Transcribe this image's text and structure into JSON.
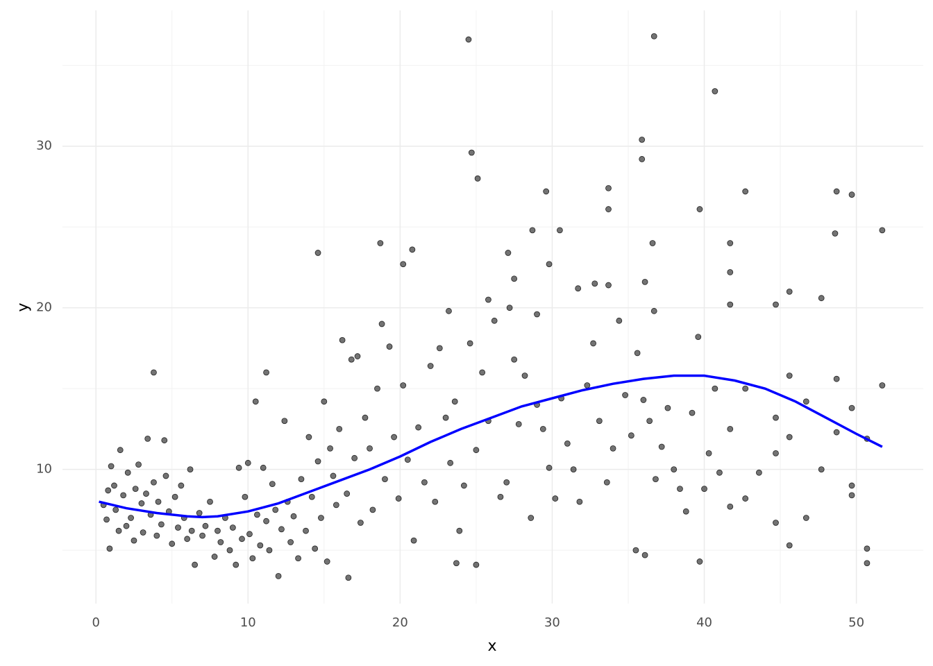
{
  "chart_data": {
    "type": "scatter",
    "x_label": "x",
    "y_label": "y",
    "xlim": [
      -2.2,
      54.4
    ],
    "ylim": [
      1.7,
      38.4
    ],
    "xticks": [
      0,
      10,
      20,
      30,
      40,
      50
    ],
    "yticks": [
      10,
      20,
      30
    ],
    "minor_xticks": [
      5,
      15,
      25,
      35,
      45
    ],
    "minor_yticks": [
      5,
      15,
      25,
      35
    ],
    "grid": true,
    "point_color": "#000000",
    "point_opacity": 0.55,
    "points": [
      {
        "x": 24.5,
        "y": 36.6
      },
      {
        "x": 36.7,
        "y": 36.8
      },
      {
        "x": 40.7,
        "y": 33.4
      },
      {
        "x": 24.7,
        "y": 29.6
      },
      {
        "x": 25.1,
        "y": 28.0
      },
      {
        "x": 35.9,
        "y": 30.4
      },
      {
        "x": 35.9,
        "y": 29.2
      },
      {
        "x": 29.6,
        "y": 27.2
      },
      {
        "x": 33.7,
        "y": 27.4
      },
      {
        "x": 33.7,
        "y": 26.1
      },
      {
        "x": 42.7,
        "y": 27.2
      },
      {
        "x": 48.7,
        "y": 27.2
      },
      {
        "x": 49.7,
        "y": 27.0
      },
      {
        "x": 39.7,
        "y": 26.1
      },
      {
        "x": 51.7,
        "y": 24.8
      },
      {
        "x": 48.6,
        "y": 24.6
      },
      {
        "x": 28.7,
        "y": 24.8
      },
      {
        "x": 30.5,
        "y": 24.8
      },
      {
        "x": 18.7,
        "y": 24.0
      },
      {
        "x": 20.8,
        "y": 23.6
      },
      {
        "x": 20.2,
        "y": 22.7
      },
      {
        "x": 14.6,
        "y": 23.4
      },
      {
        "x": 27.1,
        "y": 23.4
      },
      {
        "x": 29.8,
        "y": 22.7
      },
      {
        "x": 36.6,
        "y": 24.0
      },
      {
        "x": 41.7,
        "y": 24.0
      },
      {
        "x": 41.7,
        "y": 22.2
      },
      {
        "x": 36.1,
        "y": 21.6
      },
      {
        "x": 32.8,
        "y": 21.5
      },
      {
        "x": 33.7,
        "y": 21.4
      },
      {
        "x": 27.5,
        "y": 21.8
      },
      {
        "x": 31.7,
        "y": 21.2
      },
      {
        "x": 45.6,
        "y": 21.0
      },
      {
        "x": 47.7,
        "y": 20.6
      },
      {
        "x": 25.8,
        "y": 20.5
      },
      {
        "x": 44.7,
        "y": 20.2
      },
      {
        "x": 41.7,
        "y": 20.2
      },
      {
        "x": 23.2,
        "y": 19.8
      },
      {
        "x": 36.7,
        "y": 19.8
      },
      {
        "x": 29.0,
        "y": 19.6
      },
      {
        "x": 3.8,
        "y": 16.0
      },
      {
        "x": 11.2,
        "y": 16.0
      },
      {
        "x": 51.7,
        "y": 15.2
      },
      {
        "x": 50.7,
        "y": 5.1
      },
      {
        "x": 50.7,
        "y": 4.2
      },
      {
        "x": 16.6,
        "y": 3.3
      },
      {
        "x": 25.0,
        "y": 4.1
      },
      {
        "x": 23.7,
        "y": 4.2
      },
      {
        "x": 39.7,
        "y": 4.3
      },
      {
        "x": 35.5,
        "y": 5.0
      },
      {
        "x": 36.1,
        "y": 4.7
      },
      {
        "x": 0.5,
        "y": 7.8
      },
      {
        "x": 0.7,
        "y": 6.9
      },
      {
        "x": 0.8,
        "y": 8.7
      },
      {
        "x": 0.9,
        "y": 5.1
      },
      {
        "x": 1.0,
        "y": 10.2
      },
      {
        "x": 1.2,
        "y": 9.0
      },
      {
        "x": 1.3,
        "y": 7.5
      },
      {
        "x": 1.5,
        "y": 6.2
      },
      {
        "x": 1.6,
        "y": 11.2
      },
      {
        "x": 1.8,
        "y": 8.4
      },
      {
        "x": 2.0,
        "y": 6.5
      },
      {
        "x": 2.1,
        "y": 9.8
      },
      {
        "x": 2.3,
        "y": 7.0
      },
      {
        "x": 2.5,
        "y": 5.6
      },
      {
        "x": 2.6,
        "y": 8.8
      },
      {
        "x": 2.8,
        "y": 10.3
      },
      {
        "x": 3.0,
        "y": 7.9
      },
      {
        "x": 3.1,
        "y": 6.1
      },
      {
        "x": 3.3,
        "y": 8.5
      },
      {
        "x": 3.4,
        "y": 11.9
      },
      {
        "x": 3.6,
        "y": 7.2
      },
      {
        "x": 3.8,
        "y": 9.2
      },
      {
        "x": 4.0,
        "y": 5.9
      },
      {
        "x": 4.1,
        "y": 8.0
      },
      {
        "x": 4.3,
        "y": 6.6
      },
      {
        "x": 4.5,
        "y": 11.8
      },
      {
        "x": 4.6,
        "y": 9.6
      },
      {
        "x": 4.8,
        "y": 7.4
      },
      {
        "x": 5.0,
        "y": 5.4
      },
      {
        "x": 5.2,
        "y": 8.3
      },
      {
        "x": 5.4,
        "y": 6.4
      },
      {
        "x": 5.6,
        "y": 9.0
      },
      {
        "x": 5.8,
        "y": 7.0
      },
      {
        "x": 6.0,
        "y": 5.7
      },
      {
        "x": 6.2,
        "y": 10.0
      },
      {
        "x": 6.3,
        "y": 6.2
      },
      {
        "x": 6.5,
        "y": 4.1
      },
      {
        "x": 6.8,
        "y": 7.3
      },
      {
        "x": 7.0,
        "y": 5.9
      },
      {
        "x": 7.2,
        "y": 6.5
      },
      {
        "x": 7.5,
        "y": 8.0
      },
      {
        "x": 7.8,
        "y": 4.6
      },
      {
        "x": 8.0,
        "y": 6.2
      },
      {
        "x": 8.2,
        "y": 5.5
      },
      {
        "x": 8.5,
        "y": 7.0
      },
      {
        "x": 8.8,
        "y": 5.0
      },
      {
        "x": 9.0,
        "y": 6.4
      },
      {
        "x": 9.2,
        "y": 4.1
      },
      {
        "x": 9.4,
        "y": 10.1
      },
      {
        "x": 9.6,
        "y": 5.7
      },
      {
        "x": 9.8,
        "y": 8.3
      },
      {
        "x": 10.0,
        "y": 10.4
      },
      {
        "x": 10.1,
        "y": 6.0
      },
      {
        "x": 10.3,
        "y": 4.5
      },
      {
        "x": 10.5,
        "y": 14.2
      },
      {
        "x": 10.6,
        "y": 7.2
      },
      {
        "x": 10.8,
        "y": 5.3
      },
      {
        "x": 11.0,
        "y": 10.1
      },
      {
        "x": 11.2,
        "y": 6.8
      },
      {
        "x": 11.4,
        "y": 5.0
      },
      {
        "x": 11.6,
        "y": 9.1
      },
      {
        "x": 11.8,
        "y": 7.5
      },
      {
        "x": 12.0,
        "y": 3.4
      },
      {
        "x": 12.2,
        "y": 6.3
      },
      {
        "x": 12.4,
        "y": 13.0
      },
      {
        "x": 12.6,
        "y": 8.0
      },
      {
        "x": 12.8,
        "y": 5.5
      },
      {
        "x": 13.0,
        "y": 7.1
      },
      {
        "x": 13.3,
        "y": 4.5
      },
      {
        "x": 13.5,
        "y": 9.4
      },
      {
        "x": 13.8,
        "y": 6.2
      },
      {
        "x": 14.0,
        "y": 12.0
      },
      {
        "x": 14.2,
        "y": 8.3
      },
      {
        "x": 14.4,
        "y": 5.1
      },
      {
        "x": 14.6,
        "y": 10.5
      },
      {
        "x": 14.8,
        "y": 7.0
      },
      {
        "x": 15.0,
        "y": 14.2
      },
      {
        "x": 15.2,
        "y": 4.3
      },
      {
        "x": 15.4,
        "y": 11.3
      },
      {
        "x": 15.6,
        "y": 9.6
      },
      {
        "x": 15.8,
        "y": 7.8
      },
      {
        "x": 16.0,
        "y": 12.5
      },
      {
        "x": 16.2,
        "y": 18.0
      },
      {
        "x": 16.5,
        "y": 8.5
      },
      {
        "x": 16.8,
        "y": 16.8
      },
      {
        "x": 17.0,
        "y": 10.7
      },
      {
        "x": 17.2,
        "y": 17.0
      },
      {
        "x": 17.4,
        "y": 6.7
      },
      {
        "x": 17.7,
        "y": 13.2
      },
      {
        "x": 18.0,
        "y": 11.3
      },
      {
        "x": 18.2,
        "y": 7.5
      },
      {
        "x": 18.5,
        "y": 15.0
      },
      {
        "x": 18.8,
        "y": 19.0
      },
      {
        "x": 19.0,
        "y": 9.4
      },
      {
        "x": 19.3,
        "y": 17.6
      },
      {
        "x": 19.6,
        "y": 12.0
      },
      {
        "x": 19.9,
        "y": 8.2
      },
      {
        "x": 20.2,
        "y": 15.2
      },
      {
        "x": 20.5,
        "y": 10.6
      },
      {
        "x": 20.9,
        "y": 5.6
      },
      {
        "x": 21.2,
        "y": 12.6
      },
      {
        "x": 21.6,
        "y": 9.2
      },
      {
        "x": 22.0,
        "y": 16.4
      },
      {
        "x": 22.3,
        "y": 8.0
      },
      {
        "x": 22.6,
        "y": 17.5
      },
      {
        "x": 23.0,
        "y": 13.2
      },
      {
        "x": 23.3,
        "y": 10.4
      },
      {
        "x": 23.6,
        "y": 14.2
      },
      {
        "x": 23.9,
        "y": 6.2
      },
      {
        "x": 24.2,
        "y": 9.0
      },
      {
        "x": 24.6,
        "y": 17.8
      },
      {
        "x": 25.0,
        "y": 11.2
      },
      {
        "x": 25.4,
        "y": 16.0
      },
      {
        "x": 25.8,
        "y": 13.0
      },
      {
        "x": 26.2,
        "y": 19.2
      },
      {
        "x": 26.6,
        "y": 8.3
      },
      {
        "x": 27.0,
        "y": 9.2
      },
      {
        "x": 27.2,
        "y": 20.0
      },
      {
        "x": 27.5,
        "y": 16.8
      },
      {
        "x": 27.8,
        "y": 12.8
      },
      {
        "x": 28.2,
        "y": 15.8
      },
      {
        "x": 28.6,
        "y": 7.0
      },
      {
        "x": 29.0,
        "y": 14.0
      },
      {
        "x": 29.4,
        "y": 12.5
      },
      {
        "x": 29.8,
        "y": 10.1
      },
      {
        "x": 30.2,
        "y": 8.2
      },
      {
        "x": 30.6,
        "y": 14.4
      },
      {
        "x": 31.0,
        "y": 11.6
      },
      {
        "x": 31.4,
        "y": 10.0
      },
      {
        "x": 31.8,
        "y": 8.0
      },
      {
        "x": 32.3,
        "y": 15.2
      },
      {
        "x": 32.7,
        "y": 17.8
      },
      {
        "x": 33.1,
        "y": 13.0
      },
      {
        "x": 33.6,
        "y": 9.2
      },
      {
        "x": 34.0,
        "y": 11.3
      },
      {
        "x": 34.4,
        "y": 19.2
      },
      {
        "x": 34.8,
        "y": 14.6
      },
      {
        "x": 35.2,
        "y": 12.1
      },
      {
        "x": 35.6,
        "y": 17.2
      },
      {
        "x": 36.0,
        "y": 14.3
      },
      {
        "x": 36.4,
        "y": 13.0
      },
      {
        "x": 36.8,
        "y": 9.4
      },
      {
        "x": 37.2,
        "y": 11.4
      },
      {
        "x": 37.6,
        "y": 13.8
      },
      {
        "x": 38.0,
        "y": 10.0
      },
      {
        "x": 38.4,
        "y": 8.8
      },
      {
        "x": 38.8,
        "y": 7.4
      },
      {
        "x": 39.2,
        "y": 13.5
      },
      {
        "x": 39.6,
        "y": 18.2
      },
      {
        "x": 40.0,
        "y": 8.8
      },
      {
        "x": 40.3,
        "y": 11.0
      },
      {
        "x": 40.7,
        "y": 15.0
      },
      {
        "x": 41.0,
        "y": 9.8
      },
      {
        "x": 41.7,
        "y": 12.5
      },
      {
        "x": 41.7,
        "y": 7.7
      },
      {
        "x": 42.7,
        "y": 15.0
      },
      {
        "x": 42.7,
        "y": 8.2
      },
      {
        "x": 43.6,
        "y": 9.8
      },
      {
        "x": 44.7,
        "y": 11.0
      },
      {
        "x": 44.7,
        "y": 6.7
      },
      {
        "x": 44.7,
        "y": 13.2
      },
      {
        "x": 45.6,
        "y": 15.8
      },
      {
        "x": 45.6,
        "y": 12.0
      },
      {
        "x": 45.6,
        "y": 5.3
      },
      {
        "x": 46.7,
        "y": 7.0
      },
      {
        "x": 46.7,
        "y": 14.2
      },
      {
        "x": 47.7,
        "y": 10.0
      },
      {
        "x": 48.7,
        "y": 12.3
      },
      {
        "x": 48.7,
        "y": 15.6
      },
      {
        "x": 49.7,
        "y": 9.0
      },
      {
        "x": 49.7,
        "y": 8.4
      },
      {
        "x": 49.7,
        "y": 13.8
      },
      {
        "x": 50.7,
        "y": 11.9
      }
    ],
    "smooth": {
      "color": "#0000ff",
      "x": [
        0.2,
        2,
        4,
        6,
        7,
        8,
        10,
        12,
        14,
        16,
        18,
        20,
        22,
        24,
        26,
        28,
        30,
        32,
        34,
        36,
        38,
        40,
        42,
        44,
        46,
        48,
        50,
        51.7
      ],
      "y": [
        8.0,
        7.6,
        7.3,
        7.1,
        7.05,
        7.1,
        7.4,
        7.9,
        8.6,
        9.3,
        10.0,
        10.8,
        11.7,
        12.5,
        13.2,
        13.9,
        14.4,
        14.9,
        15.3,
        15.6,
        15.8,
        15.8,
        15.5,
        15.0,
        14.2,
        13.2,
        12.2,
        11.4
      ]
    }
  }
}
